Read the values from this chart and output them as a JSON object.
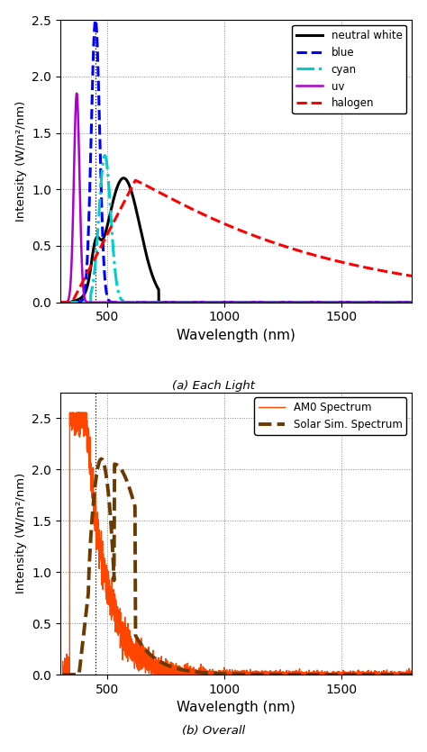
{
  "fig_width": 4.74,
  "fig_height": 8.35,
  "dpi": 100,
  "subplot_a": {
    "title": "(a) Each Light",
    "xlabel": "Wavelength (nm)",
    "ylabel": "Intensity (W/m²/nm)",
    "xlim": [
      300,
      1800
    ],
    "ylim": [
      0,
      2.5
    ],
    "yticks": [
      0,
      0.5,
      1.0,
      1.5,
      2.0,
      2.5
    ],
    "xticks": [
      500,
      1000,
      1500
    ],
    "vline": 450,
    "lines": {
      "neutral_white": {
        "color": "#000000",
        "linestyle": "-",
        "linewidth": 2.2,
        "label": "neutral white"
      },
      "blue": {
        "color": "#0000FF",
        "linestyle": "--",
        "linewidth": 2.2,
        "label": "blue"
      },
      "cyan": {
        "color": "#00CCCC",
        "linestyle": "-.",
        "linewidth": 2.2,
        "label": "cyan"
      },
      "uv": {
        "color": "#AA00CC",
        "linestyle": "-",
        "linewidth": 1.8,
        "label": "uv"
      },
      "halogen": {
        "color": "#FF0000",
        "linestyle": "--",
        "linewidth": 2.2,
        "label": "halogen"
      }
    }
  },
  "subplot_b": {
    "title": "(b) Overall",
    "xlabel": "Wavelength (nm)",
    "ylabel": "Intensity (W/m²/nm)",
    "xlim": [
      300,
      1800
    ],
    "ylim": [
      0,
      2.75
    ],
    "yticks": [
      0,
      0.5,
      1.0,
      1.5,
      2.0,
      2.5
    ],
    "xticks": [
      500,
      1000,
      1500
    ],
    "vline": 450,
    "lines": {
      "am0": {
        "color": "#FF4500",
        "linestyle": "-",
        "linewidth": 1.0,
        "label": "AM0 Spectrum"
      },
      "solar_sim": {
        "color": "#6B3A00",
        "linestyle": "--",
        "linewidth": 2.8,
        "label": "Solar Sim. Spectrum"
      }
    }
  }
}
